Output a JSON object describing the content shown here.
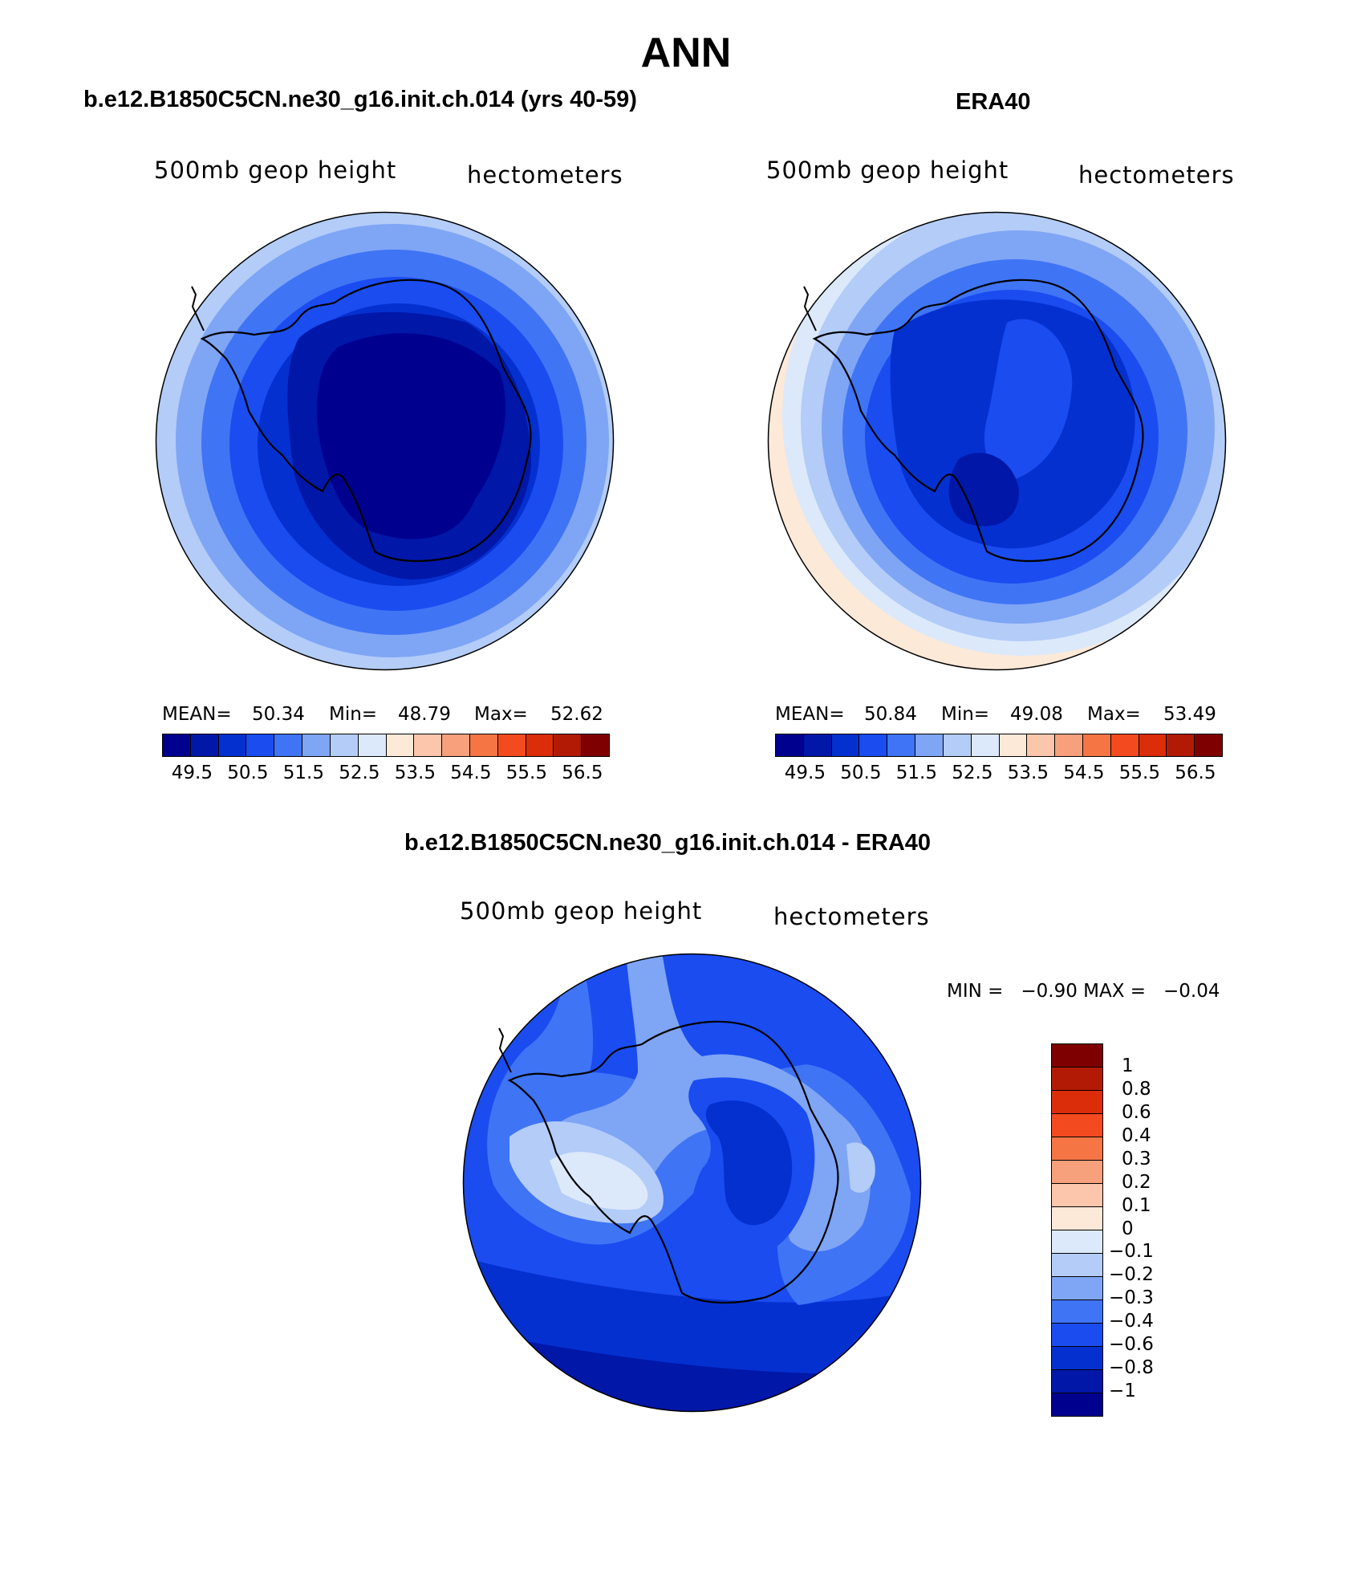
{
  "title": "ANN",
  "palette": [
    "#00008f",
    "#0017a8",
    "#0530d0",
    "#1a4cf0",
    "#3f74f5",
    "#7fa5f5",
    "#b3ccf8",
    "#dce9fb",
    "#fde9d8",
    "#fcc6ac",
    "#f7a07c",
    "#f57545",
    "#f44a1f",
    "#dc2d0b",
    "#b21a05",
    "#7f0000"
  ],
  "panels": [
    {
      "title": "b.e12.B1850C5CN.ne30_g16.init.ch.014 (yrs 40-59)",
      "variable_label": "500mb geop height",
      "units_label": "hectometers",
      "stats": {
        "mean_label": "MEAN=",
        "mean": "50.34",
        "min_label": "Min=",
        "min": "48.79",
        "max_label": "Max=",
        "max": "52.62"
      },
      "colorbar_ticks": [
        "49.5",
        "50.5",
        "51.5",
        "52.5",
        "53.5",
        "54.5",
        "55.5",
        "56.5"
      ]
    },
    {
      "title": "ERA40",
      "variable_label": "500mb geop height",
      "units_label": "hectometers",
      "stats": {
        "mean_label": "MEAN=",
        "mean": "50.84",
        "min_label": "Min=",
        "min": "49.08",
        "max_label": "Max=",
        "max": "53.49"
      },
      "colorbar_ticks": [
        "49.5",
        "50.5",
        "51.5",
        "52.5",
        "53.5",
        "54.5",
        "55.5",
        "56.5"
      ]
    }
  ],
  "difference": {
    "title": "b.e12.B1850C5CN.ne30_g16.init.ch.014 - ERA40",
    "variable_label": "500mb geop height",
    "units_label": "hectometers",
    "minmax": "MIN =   −0.90 MAX =   −0.04",
    "colorbar_ticks": [
      "1",
      "0.8",
      "0.6",
      "0.4",
      "0.3",
      "0.2",
      "0.1",
      "0",
      "−0.1",
      "−0.2",
      "−0.3",
      "−0.4",
      "−0.6",
      "−0.8",
      "−1"
    ]
  }
}
